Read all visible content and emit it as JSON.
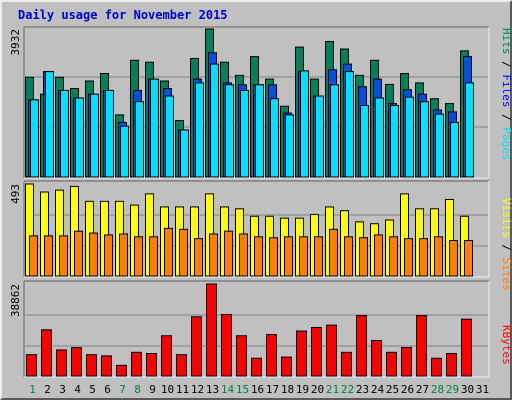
{
  "title": "Daily usage for November 2015",
  "colors": {
    "hits": "#00805c",
    "files": "#0050e0",
    "pages": "#00e0ff",
    "visits": "#ffff00",
    "sites": "#ff8000",
    "kbytes": "#ff0000",
    "weekday_label": "#000000",
    "weekend_label": "#008040",
    "vlabel_blue": "#0000ff"
  },
  "days": [
    "1",
    "2",
    "3",
    "4",
    "5",
    "6",
    "7",
    "8",
    "9",
    "10",
    "11",
    "12",
    "13",
    "14",
    "15",
    "16",
    "17",
    "18",
    "19",
    "20",
    "21",
    "22",
    "23",
    "24",
    "25",
    "26",
    "27",
    "28",
    "29",
    "30",
    "31"
  ],
  "weekend_days": [
    "1",
    "7",
    "8",
    "14",
    "15",
    "21",
    "22",
    "28",
    "29"
  ],
  "chart_data": [
    {
      "type": "bar",
      "panel": "hits-files-pages",
      "ymax_label": "3932",
      "ymax": 3932,
      "legend": [
        "Pages",
        "Files",
        "Hits"
      ],
      "series": [
        {
          "name": "Hits",
          "values": [
            2650,
            2200,
            2650,
            2350,
            2550,
            2750,
            1650,
            3100,
            3050,
            2550,
            1500,
            3150,
            3932,
            3050,
            2700,
            3200,
            2600,
            1880,
            3450,
            2600,
            3600,
            3400,
            2700,
            3100,
            2460,
            2750,
            2500,
            2080,
            1950,
            3350,
            0
          ]
        },
        {
          "name": "Files",
          "values": [
            2050,
            2800,
            2300,
            2100,
            2200,
            2300,
            1450,
            2300,
            2600,
            2350,
            1250,
            2600,
            3300,
            2500,
            2450,
            2450,
            2450,
            1700,
            2800,
            2150,
            2850,
            3000,
            2400,
            2600,
            1950,
            2320,
            2200,
            1780,
            1730,
            3200,
            0
          ]
        },
        {
          "name": "Pages",
          "values": [
            2050,
            2800,
            2300,
            2100,
            2200,
            2300,
            1350,
            2000,
            2600,
            2150,
            1250,
            2500,
            3000,
            2450,
            2300,
            2450,
            2080,
            1650,
            2820,
            2150,
            2450,
            2800,
            1900,
            2100,
            1900,
            2120,
            2000,
            1670,
            1450,
            2500,
            0
          ]
        }
      ]
    },
    {
      "type": "bar",
      "panel": "visits-sites",
      "ymax_label": "493",
      "ymax": 493,
      "legend": [
        "Sites",
        "Visits"
      ],
      "series": [
        {
          "name": "Visits",
          "values": [
            493,
            450,
            460,
            480,
            400,
            400,
            400,
            380,
            440,
            370,
            370,
            370,
            440,
            370,
            360,
            320,
            320,
            310,
            310,
            330,
            370,
            350,
            290,
            280,
            300,
            440,
            360,
            360,
            410,
            320,
            0
          ]
        },
        {
          "name": "Sites",
          "values": [
            215,
            215,
            215,
            240,
            230,
            220,
            225,
            210,
            210,
            255,
            250,
            200,
            225,
            240,
            225,
            210,
            205,
            210,
            210,
            210,
            250,
            210,
            205,
            220,
            210,
            200,
            200,
            210,
            190,
            190,
            0
          ]
        }
      ]
    },
    {
      "type": "bar",
      "panel": "kbytes",
      "ymax_label": "38862",
      "ymax": 38862,
      "legend": [
        "KBytes"
      ],
      "series": [
        {
          "name": "KBytes",
          "values": [
            9000,
            19500,
            11000,
            12000,
            9000,
            8500,
            4500,
            10000,
            9500,
            17000,
            9000,
            25000,
            38862,
            26000,
            17000,
            7500,
            17500,
            8000,
            19000,
            20500,
            21500,
            10000,
            25500,
            15000,
            10000,
            12000,
            25500,
            7500,
            9500,
            24000,
            0
          ]
        }
      ]
    }
  ]
}
